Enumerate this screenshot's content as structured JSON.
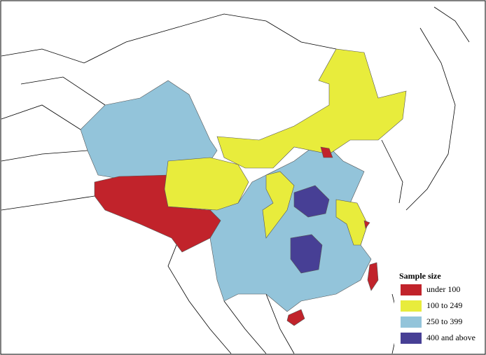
{
  "legend": {
    "title": "Sample size",
    "items": [
      {
        "label": "under 100",
        "color": "#c1232b"
      },
      {
        "label": "100 to 249",
        "color": "#e8ec3c"
      },
      {
        "label": "250 to 399",
        "color": "#93c4da"
      },
      {
        "label": "400 and above",
        "color": "#473f95"
      }
    ]
  }
}
